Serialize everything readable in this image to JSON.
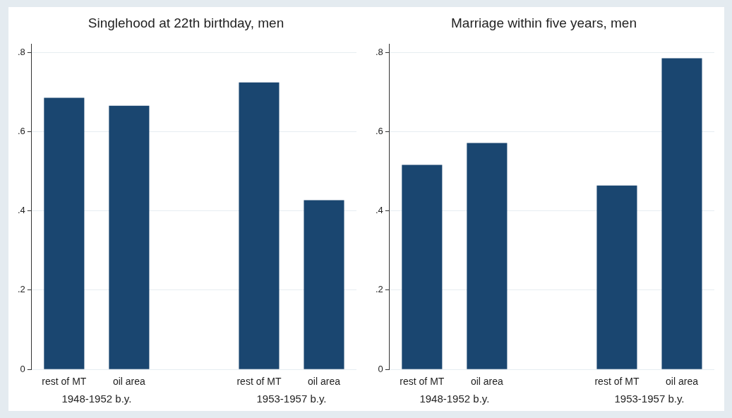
{
  "chart_data": [
    {
      "type": "bar",
      "title": "Singlehood at 22th birthday, men",
      "categories": [
        "rest of MT",
        "oil area",
        null,
        "rest of MT",
        "oil area"
      ],
      "values": [
        0.685,
        0.665,
        null,
        0.724,
        0.427
      ],
      "color": "#1a4670",
      "ylim": [
        0,
        0.82
      ],
      "yticks": [
        0,
        {
          "value": 0.2,
          "label": ".2"
        },
        {
          "value": 0.4,
          "label": ".4"
        },
        {
          "value": 0.6,
          "label": ".6"
        },
        {
          "value": 0.8,
          "label": ".8"
        }
      ],
      "grid": "y",
      "annotations": [
        "1948-1952 b.y.",
        "1953-1957 b.y."
      ]
    },
    {
      "type": "bar",
      "title": "Marriage within five years, men",
      "categories": [
        "rest of MT",
        "oil area",
        null,
        "rest of MT",
        "oil area"
      ],
      "values": [
        0.516,
        0.571,
        null,
        0.464,
        0.785
      ],
      "color": "#1a4670",
      "ylim": [
        0,
        0.82
      ],
      "yticks": [
        0,
        {
          "value": 0.2,
          "label": ".2"
        },
        {
          "value": 0.4,
          "label": ".4"
        },
        {
          "value": 0.6,
          "label": ".6"
        },
        {
          "value": 0.8,
          "label": ".8"
        }
      ],
      "grid": "y",
      "annotations": [
        "1948-1952 b.y.",
        "1953-1957 b.y."
      ]
    }
  ]
}
